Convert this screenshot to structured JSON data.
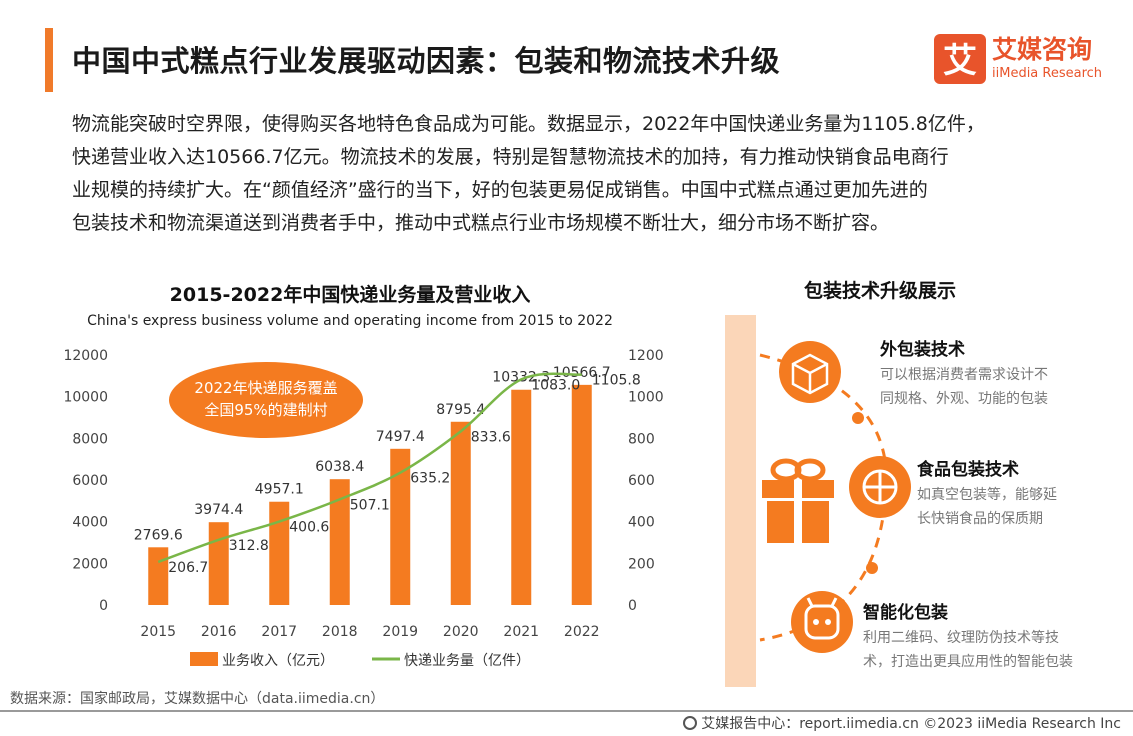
{
  "header": {
    "title": "中国中式糕点行业发展驱动因素：包装和物流技术升级",
    "logo_cn": "艾媒咨询",
    "logo_en": "iiMedia Research",
    "logo_mark": "艾"
  },
  "intro": {
    "lines": [
      "物流能突破时空界限，使得购买各地特色食品成为可能。数据显示，2022年中国快递业务量为1105.8亿件，",
      "快递营业收入达10566.7亿元。物流技术的发展，特别是智慧物流技术的加持，有力推动快销食品电商行",
      "业规模的持续扩大。在“颜值经济”盛行的当下，好的包装更易促成销售。中国中式糕点通过更加先进的",
      "包装技术和物流渠道送到消费者手中，推动中式糕点行业市场规模不断壮大，细分市场不断扩容。"
    ]
  },
  "chart_data": {
    "type": "bar",
    "title": "2015-2022年中国快递业务量及营业收入",
    "subtitle": "China's express business volume and operating income from 2015 to 2022",
    "categories": [
      "2015",
      "2016",
      "2017",
      "2018",
      "2019",
      "2020",
      "2021",
      "2022"
    ],
    "series": [
      {
        "name": "业务收入（亿元）",
        "type": "bar",
        "axis": "left",
        "values": [
          2769.6,
          3974.4,
          4957.1,
          6038.4,
          7497.4,
          8795.4,
          10332.3,
          10566.7
        ],
        "labels": [
          "2769.6",
          "3974.4",
          "4957.1",
          "6038.4",
          "7497.4",
          "8795.4",
          "10332.3",
          "10566.7"
        ]
      },
      {
        "name": "快递业务量（亿件）",
        "type": "line",
        "axis": "right",
        "values": [
          206.7,
          312.8,
          400.6,
          507.1,
          635.2,
          833.6,
          1083.0,
          1105.8
        ],
        "labels": [
          "206.7",
          "312.8",
          "400.6",
          "507.1",
          "635.2",
          "833.6",
          "1083.0",
          "1105.8"
        ]
      }
    ],
    "ylim_left": [
      0,
      12000
    ],
    "yticks_left": [
      "0",
      "2000",
      "4000",
      "6000",
      "8000",
      "10000",
      "12000"
    ],
    "ylim_right": [
      0,
      1200
    ],
    "yticks_right": [
      "0",
      "200",
      "400",
      "600",
      "800",
      "1000",
      "1200"
    ],
    "annotation": {
      "lines": [
        "2022年快递服务覆盖",
        "全国95%的建制村"
      ]
    },
    "legend_position": "bottom",
    "grid": false,
    "colors": {
      "bar": "#f47b20",
      "line": "#7ab648"
    }
  },
  "packaging": {
    "title": "包装技术升级展示",
    "items": [
      {
        "title": "外包装技术",
        "desc": [
          "可以根据消费者需求设计不",
          "同规格、外观、功能的包装"
        ],
        "icon": "box-icon"
      },
      {
        "title": "食品包装技术",
        "desc": [
          "如真空包装等，能够延",
          "长快销食品的保质期"
        ],
        "icon": "vacuum-icon"
      },
      {
        "title": "智能化包装",
        "desc": [
          "利用二维码、纹理防伪技术等技",
          "术，打造出更具应用性的智能包装"
        ],
        "icon": "smart-icon"
      }
    ],
    "gift_icon": "gift-icon",
    "accent_color": "#f47b20"
  },
  "footer": {
    "source": "数据来源：国家邮政局，艾媒数据中心（data.iimedia.cn）",
    "site": "艾媒报告中心：report.iimedia.cn  ©2023  iiMedia Research  Inc"
  }
}
